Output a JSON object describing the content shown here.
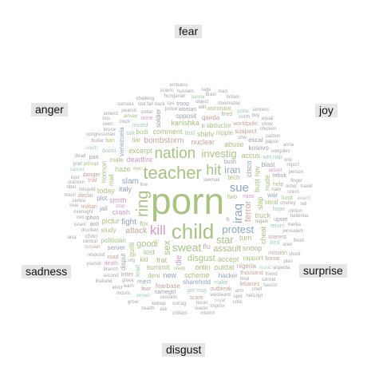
{
  "emotions": [
    {
      "key": "fear",
      "label": "fear"
    },
    {
      "key": "anger",
      "label": "anger"
    },
    {
      "key": "joy",
      "label": "joy"
    },
    {
      "key": "sadness",
      "label": "sadness"
    },
    {
      "key": "surprise",
      "label": "surprise"
    },
    {
      "key": "disgust",
      "label": "disgust"
    }
  ],
  "colors": {
    "disgust": "#a9c47f",
    "anger": "#9aa3b0",
    "fear": "#c8a59a",
    "joy": "#9fd0b4",
    "sadness": "#d89ac6",
    "surprise": "#8fa6bf",
    "dense": "#a8a8a8"
  },
  "words": [
    {
      "t": "porn",
      "e": "disgust",
      "s": 46
    },
    {
      "t": "child",
      "e": "disgust",
      "s": 26
    },
    {
      "t": "teacher",
      "e": "disgust",
      "s": 22
    },
    {
      "t": "ring",
      "e": "disgust",
      "s": 20
    },
    {
      "t": "nation",
      "e": "disgust",
      "s": 19
    },
    {
      "t": "hit",
      "e": "disgust",
      "s": 18
    },
    {
      "t": "kill",
      "e": "sadness",
      "s": 17
    },
    {
      "t": "sue",
      "e": "surprise",
      "s": 15
    },
    {
      "t": "iraq",
      "e": "surprise",
      "s": 15
    },
    {
      "t": "sweat",
      "e": "disgust",
      "s": 14
    },
    {
      "t": "investig",
      "e": "disgust",
      "s": 13
    },
    {
      "t": "protest",
      "e": "surprise",
      "s": 13
    },
    {
      "t": "star",
      "e": "disgust",
      "s": 13
    },
    {
      "t": "sex",
      "e": "disgust",
      "s": 12
    },
    {
      "t": "iran",
      "e": "surprise",
      "s": 12
    },
    {
      "t": "disgust",
      "e": "disgust",
      "s": 11
    },
    {
      "t": "goodi",
      "e": "disgust",
      "s": 11
    },
    {
      "t": "assault",
      "e": "disgust",
      "s": 11
    },
    {
      "t": "attack",
      "e": "fear",
      "s": 10
    },
    {
      "t": "terror",
      "e": "fear",
      "s": 11
    },
    {
      "t": "bombstorm",
      "e": "fear",
      "s": 10
    },
    {
      "t": "fight",
      "e": "surprise",
      "s": 10
    },
    {
      "t": "slam",
      "e": "surprise",
      "s": 10
    },
    {
      "t": "nuclear",
      "e": "fear",
      "s": 9
    },
    {
      "t": "die",
      "e": "sadness",
      "s": 10
    },
    {
      "t": "crash",
      "e": "sadness",
      "s": 9
    },
    {
      "t": "deadfire",
      "e": "sadness",
      "s": 9
    },
    {
      "t": "smith",
      "e": "sadness",
      "s": 9
    },
    {
      "t": "cisco",
      "e": "surprise",
      "s": 9
    },
    {
      "t": "italy",
      "e": "surprise",
      "s": 9
    },
    {
      "t": "lost",
      "e": "disgust",
      "s": 9
    },
    {
      "t": "turn",
      "e": "disgust",
      "s": 9
    },
    {
      "t": "frat",
      "e": "disgust",
      "s": 9
    },
    {
      "t": "bust",
      "e": "disgust",
      "s": 9
    },
    {
      "t": "haze",
      "e": "disgust",
      "s": 9
    },
    {
      "t": "accept",
      "e": "disgust",
      "s": 9
    },
    {
      "t": "comment",
      "e": "disgust",
      "s": 9
    },
    {
      "t": "shelv",
      "e": "disgust",
      "s": 9
    },
    {
      "t": "slap",
      "e": "disgust",
      "s": 9
    },
    {
      "t": "abuse",
      "e": "disgust",
      "s": 9
    },
    {
      "t": "excerpt",
      "e": "disgust",
      "s": 9
    },
    {
      "t": "onlin",
      "e": "disgust",
      "s": 9
    },
    {
      "t": "politician",
      "e": "disgust",
      "s": 8
    },
    {
      "t": "truck",
      "e": "disgust",
      "s": 9
    },
    {
      "t": "guilti",
      "e": "disgust",
      "s": 9
    },
    {
      "t": "scheme",
      "e": "disgust",
      "s": 9
    },
    {
      "t": "summit",
      "e": "disgust",
      "s": 9
    },
    {
      "t": "accus",
      "e": "disgust",
      "s": 9
    },
    {
      "t": "kanishka",
      "e": "disgust",
      "s": 9
    },
    {
      "t": "nude",
      "e": "disgust",
      "s": 9
    },
    {
      "t": "outdat",
      "e": "disgust",
      "s": 9
    },
    {
      "t": "pictur",
      "e": "disgust",
      "s": 9
    },
    {
      "t": "snoop",
      "e": "disgust",
      "s": 9
    },
    {
      "t": "today",
      "e": "disgust",
      "s": 9
    },
    {
      "t": "cheat",
      "e": "disgust",
      "s": 9
    },
    {
      "t": "tech",
      "e": "disgust",
      "s": 8
    },
    {
      "t": "mail",
      "e": "disgust",
      "s": 8
    },
    {
      "t": "fox",
      "e": "disgust",
      "s": 8
    },
    {
      "t": "liar",
      "e": "disgust",
      "s": 8
    },
    {
      "t": "nipple",
      "e": "disgust",
      "s": 8
    },
    {
      "t": "abductor",
      "e": "disgust",
      "s": 8
    },
    {
      "t": "hormon",
      "e": "disgust",
      "s": 8
    },
    {
      "t": "study",
      "e": "disgust",
      "s": 8
    },
    {
      "t": "male",
      "e": "disgust",
      "s": 8
    },
    {
      "t": "steal",
      "e": "disgust",
      "s": 8
    },
    {
      "t": "rapport",
      "e": "disgust",
      "s": 8
    },
    {
      "t": "hpv",
      "e": "disgust",
      "s": 8
    },
    {
      "t": "kid",
      "e": "disgust",
      "s": 8
    },
    {
      "t": "two",
      "e": "disgust",
      "s": 8
    },
    {
      "t": "deni",
      "e": "disgust",
      "s": 8
    },
    {
      "t": "bodi",
      "e": "disgust",
      "s": 8
    },
    {
      "t": "help",
      "e": "disgust",
      "s": 7
    },
    {
      "t": "new",
      "e": "surprise",
      "s": 9
    },
    {
      "t": "win nap",
      "e": "joy",
      "s": 7
    },
    {
      "t": "lead",
      "e": "joy",
      "s": 8
    },
    {
      "t": "get may",
      "e": "joy",
      "s": 7
    },
    {
      "t": "hope",
      "e": "joy",
      "s": 7
    },
    {
      "t": "record",
      "e": "joy",
      "s": 7
    },
    {
      "t": "return",
      "e": "joy",
      "s": 7
    },
    {
      "t": "boost",
      "e": "joy",
      "s": 7
    },
    {
      "t": "talk",
      "e": "joy",
      "s": 7
    },
    {
      "t": "test",
      "e": "joy",
      "s": 8
    },
    {
      "t": "make",
      "e": "joy",
      "s": 7
    },
    {
      "t": "bird",
      "e": "joy",
      "s": 7
    },
    {
      "t": "hacker",
      "e": "surprise",
      "s": 8
    },
    {
      "t": "war",
      "e": "surprise",
      "s": 8
    },
    {
      "t": "plot",
      "e": "surprise",
      "s": 8
    },
    {
      "t": "venezuela",
      "e": "surprise",
      "s": 8
    },
    {
      "t": "server",
      "e": "surprise",
      "s": 8
    },
    {
      "t": "jail",
      "e": "surprise",
      "s": 8
    },
    {
      "t": "reject",
      "e": "surprise",
      "s": 7
    },
    {
      "t": "sharehold",
      "e": "surprise",
      "s": 8
    },
    {
      "t": "flu",
      "e": "fear",
      "s": 9
    },
    {
      "t": "fearbase",
      "e": "fear",
      "s": 8
    },
    {
      "t": "thousand",
      "e": "fear",
      "s": 7
    },
    {
      "t": "rebuk",
      "e": "anger",
      "s": 7
    },
    {
      "t": "iphon",
      "e": "anger",
      "s": 7
    },
    {
      "t": "soldier",
      "e": "anger",
      "s": 8
    },
    {
      "t": "opposit",
      "e": "anger",
      "s": 8
    },
    {
      "t": "blast",
      "e": "anger",
      "s": 8
    },
    {
      "t": "escal",
      "e": "anger",
      "s": 8
    },
    {
      "t": "kosovo",
      "e": "anger",
      "s": 8
    },
    {
      "t": "disput",
      "e": "anger",
      "s": 8
    },
    {
      "t": "namegirl",
      "e": "anger",
      "s": 7
    },
    {
      "t": "upset",
      "e": "anger",
      "s": 7
    },
    {
      "t": "woman",
      "e": "anger",
      "s": 7
    },
    {
      "t": "qaeda",
      "e": "fear",
      "s": 8
    },
    {
      "t": "interest",
      "e": "fear",
      "s": 7
    },
    {
      "t": "worldpolic",
      "e": "fear",
      "s": 7
    },
    {
      "t": "outbreak",
      "e": "fear",
      "s": 7
    },
    {
      "t": "nigeria",
      "e": "fear",
      "s": 8
    },
    {
      "t": "suspect",
      "e": "fear",
      "s": 8
    },
    {
      "t": "danger",
      "e": "fear",
      "s": 7
    },
    {
      "t": "road",
      "e": "fear",
      "s": 7
    },
    {
      "t": "declar",
      "e": "fear",
      "s": 7
    },
    {
      "t": "militari",
      "e": "fear",
      "s": 7
    },
    {
      "t": "chao",
      "e": "fear",
      "s": 7
    },
    {
      "t": "letter",
      "e": "fear",
      "s": 7
    },
    {
      "t": "trial",
      "e": "fear",
      "s": 7
    },
    {
      "t": "death",
      "e": "sadness",
      "s": 7
    },
    {
      "t": "miss",
      "e": "sadness",
      "s": 7
    },
    {
      "t": "mine",
      "e": "sadness",
      "s": 7
    },
    {
      "t": "stop",
      "e": "sadness",
      "s": 6
    },
    {
      "t": "airport",
      "e": "sadness",
      "s": 6
    },
    {
      "t": "astronaut",
      "e": "disgust",
      "s": 7
    },
    {
      "t": "principl",
      "e": "disgust",
      "s": 6
    },
    {
      "t": "fired",
      "e": "disgust",
      "s": 7
    },
    {
      "t": "sleep",
      "e": "disgust",
      "s": 6
    },
    {
      "t": "airway",
      "e": "disgust",
      "s": 6
    },
    {
      "t": "fund",
      "e": "disgust",
      "s": 7
    },
    {
      "t": "ban",
      "e": "disgust",
      "s": 7
    },
    {
      "t": "men",
      "e": "disgust",
      "s": 6
    },
    {
      "t": "anti",
      "e": "anger",
      "s": 7
    },
    {
      "t": "troop",
      "e": "anger",
      "s": 7
    },
    {
      "t": "bush",
      "e": "anger",
      "s": 7
    },
    {
      "t": "pan",
      "e": "anger",
      "s": 7
    },
    {
      "t": "mission",
      "e": "fear",
      "s": 7
    },
    {
      "t": "scare",
      "e": "fear",
      "s": 7
    },
    {
      "t": "russian",
      "e": "fear",
      "s": 6
    },
    {
      "t": "lebanes",
      "e": "fear",
      "s": 7
    },
    {
      "t": "korea",
      "e": "fear",
      "s": 7
    },
    {
      "t": "cheney",
      "e": "dense",
      "s": 6
    },
    {
      "t": "misguid",
      "e": "dense",
      "s": 6
    },
    {
      "t": "lawmak",
      "e": "dense",
      "s": 6
    },
    {
      "t": "drunken",
      "e": "dense",
      "s": 6
    },
    {
      "t": "westward",
      "e": "dense",
      "s": 6
    },
    {
      "t": "oversight",
      "e": "dense",
      "s": 6
    },
    {
      "t": "papon",
      "e": "dense",
      "s": 6
    },
    {
      "t": "sexualis",
      "e": "dense",
      "s": 6
    },
    {
      "t": "texan",
      "e": "dense",
      "s": 6
    },
    {
      "t": "order",
      "e": "dense",
      "s": 6
    },
    {
      "t": "police",
      "e": "dense",
      "s": 6
    },
    {
      "t": "congressman",
      "e": "dense",
      "s": 6
    },
    {
      "t": "bruce",
      "e": "dense",
      "s": 6
    },
    {
      "t": "object",
      "e": "dense",
      "s": 6
    },
    {
      "t": "collar",
      "e": "dense",
      "s": 6
    },
    {
      "t": "fan back",
      "e": "dense",
      "s": 6
    },
    {
      "t": "congoles",
      "e": "dense",
      "s": 6
    },
    {
      "t": "serbia",
      "e": "dense",
      "s": 6
    },
    {
      "t": "greek",
      "e": "dense",
      "s": 6
    },
    {
      "t": "hungarian",
      "e": "dense",
      "s": 6
    },
    {
      "t": "branch",
      "e": "dense",
      "s": 6
    },
    {
      "t": "outrag",
      "e": "dense",
      "s": 6
    },
    {
      "t": "respond",
      "e": "dense",
      "s": 6
    },
    {
      "t": "carbon",
      "e": "dense",
      "s": 6
    },
    {
      "t": "north",
      "e": "dense",
      "s": 6
    },
    {
      "t": "ballerina",
      "e": "dense",
      "s": 6
    },
    {
      "t": "media",
      "e": "dense",
      "s": 6
    },
    {
      "t": "union",
      "e": "dense",
      "s": 6
    },
    {
      "t": "finger",
      "e": "dense",
      "s": 6
    },
    {
      "t": "clinton",
      "e": "dense",
      "s": 6
    },
    {
      "t": "chiv",
      "e": "dense",
      "s": 6
    },
    {
      "t": "jerusalem",
      "e": "dense",
      "s": 6
    },
    {
      "t": "israel",
      "e": "dense",
      "s": 6
    },
    {
      "t": "chicken",
      "e": "dense",
      "s": 6
    },
    {
      "t": "uranium",
      "e": "dense",
      "s": 6
    },
    {
      "t": "doomsday",
      "e": "dense",
      "s": 6
    },
    {
      "t": "regain",
      "e": "dense",
      "s": 6
    },
    {
      "t": "urg",
      "e": "dense",
      "s": 6
    },
    {
      "t": "person",
      "e": "dense",
      "s": 6
    },
    {
      "t": "ariel",
      "e": "dense",
      "s": 6
    },
    {
      "t": "nato",
      "e": "dense",
      "s": 6
    },
    {
      "t": "central",
      "e": "dense",
      "s": 6
    },
    {
      "t": "clock",
      "e": "dense",
      "s": 6
    },
    {
      "t": "butter",
      "e": "dense",
      "s": 6
    },
    {
      "t": "line",
      "e": "dense",
      "s": 6
    },
    {
      "t": "peanut",
      "e": "dense",
      "s": 6
    },
    {
      "t": "report",
      "e": "dense",
      "s": 6
    },
    {
      "t": "seen",
      "e": "dense",
      "s": 6
    },
    {
      "t": "warn",
      "e": "dense",
      "s": 6
    },
    {
      "t": "kidnap",
      "e": "dense",
      "s": 6
    },
    {
      "t": "arm",
      "e": "dense",
      "s": 6
    },
    {
      "t": "music",
      "e": "joy",
      "s": 6
    },
    {
      "t": "royal",
      "e": "joy",
      "s": 6
    },
    {
      "t": "south",
      "e": "joy",
      "s": 6
    },
    {
      "t": "globe",
      "e": "joy",
      "s": 6
    },
    {
      "t": "winner",
      "e": "joy",
      "s": 6
    },
    {
      "t": "panda",
      "e": "joy",
      "s": 6
    },
    {
      "t": "cancer",
      "e": "joy",
      "s": 6
    },
    {
      "t": "award",
      "e": "joy",
      "s": 6
    },
    {
      "t": "spot",
      "e": "dense",
      "s": 6
    },
    {
      "t": "love",
      "e": "dense",
      "s": 6
    },
    {
      "t": "improv",
      "e": "dense",
      "s": 6
    },
    {
      "t": "challeng",
      "e": "dense",
      "s": 6
    },
    {
      "t": "second",
      "e": "dense",
      "s": 6
    },
    {
      "t": "scienc",
      "e": "dense",
      "s": 6
    },
    {
      "t": "one",
      "e": "dense",
      "s": 6
    },
    {
      "t": "boy",
      "e": "dense",
      "s": 6
    },
    {
      "t": "youtub",
      "e": "dense",
      "s": 6
    },
    {
      "t": "brain",
      "e": "dense",
      "s": 6
    },
    {
      "t": "leader",
      "e": "dense",
      "s": 6
    },
    {
      "t": "hussein",
      "e": "dense",
      "s": 6
    },
    {
      "t": "cancel",
      "e": "dense",
      "s": 6
    },
    {
      "t": "britain",
      "e": "dense",
      "s": 6
    },
    {
      "t": "collaps",
      "e": "dense",
      "s": 6
    },
    {
      "t": "mourn",
      "e": "dense",
      "s": 6
    },
    {
      "t": "helicopt",
      "e": "dense",
      "s": 6
    },
    {
      "t": "thailand",
      "e": "dense",
      "s": 6
    },
    {
      "t": "friend",
      "e": "dense",
      "s": 6
    },
    {
      "t": "injur",
      "e": "dense",
      "s": 6
    },
    {
      "t": "stat",
      "e": "dense",
      "s": 6
    },
    {
      "t": "dead",
      "e": "dense",
      "s": 6
    },
    {
      "t": "anna",
      "e": "dense",
      "s": 6
    },
    {
      "t": "bus",
      "e": "dense",
      "s": 6
    },
    {
      "t": "travel",
      "e": "dense",
      "s": 6
    },
    {
      "t": "sys",
      "e": "dense",
      "s": 6
    },
    {
      "t": "ceo",
      "e": "dense",
      "s": 6
    },
    {
      "t": "flood",
      "e": "dense",
      "s": 6
    },
    {
      "t": "show",
      "e": "dense",
      "s": 6
    },
    {
      "t": "interim",
      "e": "dense",
      "s": 6
    },
    {
      "t": "alqaeda",
      "e": "dense",
      "s": 6
    },
    {
      "t": "elect",
      "e": "dense",
      "s": 6
    },
    {
      "t": "health",
      "e": "dense",
      "s": 6
    },
    {
      "t": "chief",
      "e": "dense",
      "s": 6
    },
    {
      "t": "fli",
      "e": "dense",
      "s": 6
    },
    {
      "t": "critic",
      "e": "dense",
      "s": 6
    },
    {
      "t": "somalia",
      "e": "dense",
      "s": 6
    },
    {
      "t": "edit",
      "e": "dense",
      "s": 6
    },
    {
      "t": "heat",
      "e": "dense",
      "s": 6
    },
    {
      "t": "mash",
      "e": "dense",
      "s": 6
    },
    {
      "t": "plan",
      "e": "dense",
      "s": 6
    },
    {
      "t": "amend",
      "e": "dense",
      "s": 6
    },
    {
      "t": "grief",
      "e": "dense",
      "s": 6
    },
    {
      "t": "embassi",
      "e": "dense",
      "s": 6
    },
    {
      "t": "fear",
      "e": "fear",
      "s": 7
    },
    {
      "t": "sentenc",
      "e": "dense",
      "s": 6
    },
    {
      "t": "equal",
      "e": "dense",
      "s": 6
    },
    {
      "t": "ask",
      "e": "dense",
      "s": 6
    },
    {
      "t": "fascist",
      "e": "dense",
      "s": 6
    },
    {
      "t": "aisa",
      "e": "dense",
      "s": 6
    },
    {
      "t": "mad",
      "e": "dense",
      "s": 6
    },
    {
      "t": "shoot",
      "e": "dense",
      "s": 6
    },
    {
      "t": "fli",
      "e": "dense",
      "s": 6
    },
    {
      "t": "rage",
      "e": "dense",
      "s": 6
    },
    {
      "t": "grow",
      "e": "dense",
      "s": 6
    },
    {
      "t": "set",
      "e": "dense",
      "s": 6
    },
    {
      "t": "tibet",
      "e": "dense",
      "s": 6
    }
  ]
}
